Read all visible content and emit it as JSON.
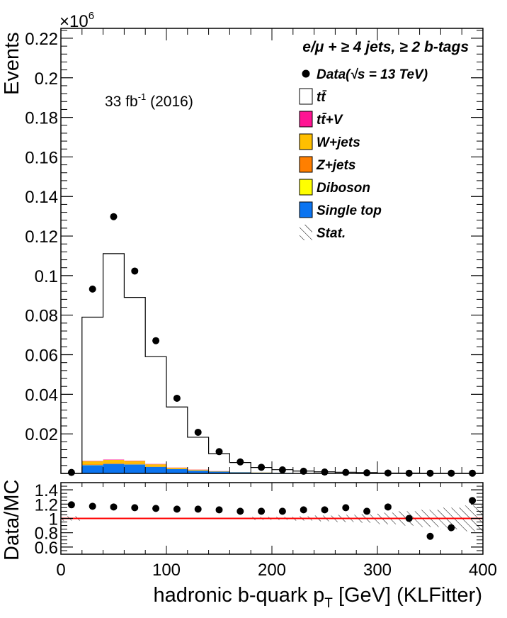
{
  "chart_data": [
    {
      "type": "stacked-histogram",
      "header": "e/μ + ≥ 4 jets, ≥ 2 b-tags",
      "lumi_label": "33 fb-1 (2016)",
      "lumi_main": "33 fb",
      "lumi_sup": "-1",
      "lumi_rest": " (2016)",
      "ylabel": "Events",
      "yexponent_base": "×10",
      "yexponent_power": "6",
      "xlim": [
        0,
        400
      ],
      "ylim": [
        0,
        0.225
      ],
      "ytick_values": [
        0.02,
        0.04,
        0.06,
        0.08,
        0.1,
        0.12,
        0.14,
        0.16,
        0.18,
        0.2,
        0.22
      ],
      "ytick_labels": [
        "0.02",
        "0.04",
        "0.06",
        "0.08",
        "0.1",
        "0.12",
        "0.14",
        "0.16",
        "0.18",
        "0.2",
        "0.22"
      ],
      "bin_edges": [
        0,
        20,
        40,
        60,
        80,
        100,
        120,
        140,
        160,
        180,
        200,
        220,
        240,
        260,
        280,
        300,
        320,
        340,
        360,
        380,
        400
      ],
      "series": [
        {
          "name": "Single top",
          "color": "#0b74f0",
          "values": [
            0,
            0.0042,
            0.0048,
            0.0045,
            0.0033,
            0.0022,
            0.0014,
            0.0009,
            0.0006,
            0.0004,
            0.0003,
            0.0002,
            0.0001,
            0.0001,
            0.0001,
            0,
            0,
            0,
            0,
            0
          ]
        },
        {
          "name": "Diboson",
          "color": "#ffff00",
          "values": [
            0,
            0.0001,
            0.0001,
            0.0001,
            0.0001,
            0,
            0,
            0,
            0,
            0,
            0,
            0,
            0,
            0,
            0,
            0,
            0,
            0,
            0,
            0
          ]
        },
        {
          "name": "Z+jets",
          "color": "#ff7f00",
          "values": [
            0,
            0.0003,
            0.0003,
            0.0003,
            0.0002,
            0.0001,
            0.0001,
            0,
            0,
            0,
            0,
            0,
            0,
            0,
            0,
            0,
            0,
            0,
            0,
            0
          ]
        },
        {
          "name": "W+jets",
          "color": "#ffbf00",
          "values": [
            0,
            0.0016,
            0.0016,
            0.0014,
            0.001,
            0.0006,
            0.0004,
            0.0002,
            0.0001,
            0.0001,
            0,
            0,
            0,
            0,
            0,
            0,
            0,
            0,
            0,
            0
          ]
        },
        {
          "name": "tt̄+V",
          "color": "#ff1493",
          "values": [
            0,
            0.0002,
            0.0002,
            0.0002,
            0.0002,
            0.0001,
            0.0001,
            0.0001,
            0,
            0,
            0,
            0,
            0,
            0,
            0,
            0,
            0,
            0,
            0,
            0
          ]
        },
        {
          "name": "tt̄",
          "color": "#ffffff",
          "values": [
            0,
            0.0726,
            0.1041,
            0.0825,
            0.0542,
            0.0306,
            0.0163,
            0.0088,
            0.0048,
            0.0025,
            0.0016,
            0.001,
            0.0007,
            0.0005,
            0.0003,
            0.0002,
            0.0002,
            0.0001,
            0.0001,
            0.0001
          ]
        }
      ],
      "data_series": {
        "name": "Data(√s = 13 TeV)",
        "x": [
          10,
          30,
          50,
          70,
          90,
          110,
          130,
          150,
          170,
          190,
          210,
          230,
          250,
          270,
          290,
          310,
          330,
          350,
          370,
          390
        ],
        "y": [
          0.0005,
          0.0932,
          0.1298,
          0.1023,
          0.0671,
          0.038,
          0.0208,
          0.011,
          0.0058,
          0.0031,
          0.0018,
          0.0011,
          0.0007,
          0.0005,
          0.0003,
          0.0002,
          0.0001,
          0.0001,
          0.0001,
          0.0001
        ]
      },
      "legend": [
        {
          "label": "Data(√s = 13 TeV)",
          "kind": "marker",
          "color": "#000000"
        },
        {
          "label": "tt̄",
          "kind": "box",
          "color": "#ffffff"
        },
        {
          "label": "tt̄+V",
          "kind": "box",
          "color": "#ff1493"
        },
        {
          "label": "W+jets",
          "kind": "box",
          "color": "#ffbf00"
        },
        {
          "label": "Z+jets",
          "kind": "box",
          "color": "#ff7f00"
        },
        {
          "label": "Diboson",
          "kind": "box",
          "color": "#ffff00"
        },
        {
          "label": "Single top",
          "kind": "box",
          "color": "#0b74f0"
        },
        {
          "label": "Stat.",
          "kind": "hatch",
          "color": "#000000"
        }
      ]
    },
    {
      "type": "scatter",
      "ylabel": "Data/MC",
      "xlabel_main": "hadronic b-quark p",
      "xlabel_sub": "T",
      "xlabel_rest": " [GeV] (KLFitter)",
      "xlim": [
        0,
        400
      ],
      "ylim": [
        0.5,
        1.5
      ],
      "ytick_values": [
        0.6,
        0.8,
        1,
        1.2,
        1.4
      ],
      "ytick_labels": [
        "0.6",
        "0.8",
        "1",
        "1.2",
        "1.4"
      ],
      "xtick_values": [
        0,
        100,
        200,
        300,
        400
      ],
      "xtick_labels": [
        "0",
        "100",
        "200",
        "300",
        "400"
      ],
      "reference_line": {
        "y": 1,
        "color": "#ff0000"
      },
      "x": [
        10,
        30,
        50,
        70,
        90,
        110,
        130,
        150,
        170,
        190,
        210,
        230,
        250,
        270,
        290,
        310,
        330,
        350,
        370,
        390
      ],
      "y": [
        1.19,
        1.17,
        1.16,
        1.15,
        1.14,
        1.13,
        1.13,
        1.12,
        1.1,
        1.1,
        1.1,
        1.12,
        1.12,
        1.15,
        1.1,
        1.16,
        1.0,
        0.75,
        0.87,
        1.25
      ],
      "stat_band": {
        "x_edges": [
          0,
          20,
          40,
          60,
          80,
          100,
          120,
          140,
          160,
          180,
          200,
          220,
          240,
          260,
          280,
          300,
          320,
          340,
          360,
          380,
          400
        ],
        "half_width": [
          0.03,
          0.005,
          0.005,
          0.005,
          0.005,
          0.005,
          0.005,
          0.01,
          0.01,
          0.02,
          0.02,
          0.03,
          0.04,
          0.05,
          0.06,
          0.08,
          0.1,
          0.12,
          0.15,
          0.18
        ]
      }
    }
  ]
}
